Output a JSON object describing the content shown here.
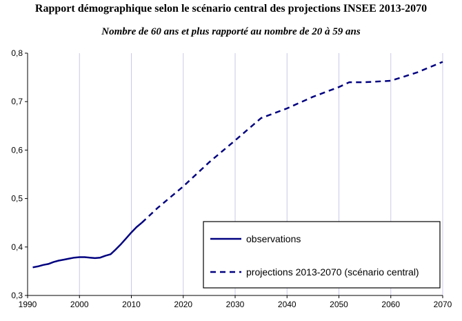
{
  "chart_data": {
    "type": "line",
    "title": "Rapport démographique selon le scénario central des projections INSEE 2013-2070",
    "subtitle": "Nombre de 60 ans et plus rapporté au nombre de 20 à 59 ans",
    "xlabel": "",
    "ylabel": "",
    "xlim": [
      1990,
      2070
    ],
    "ylim": [
      0.3,
      0.8
    ],
    "x_ticks": [
      1990,
      2000,
      2010,
      2020,
      2030,
      2040,
      2050,
      2060,
      2070
    ],
    "y_ticks": [
      0.3,
      0.4,
      0.5,
      0.6,
      0.7,
      0.8
    ],
    "y_tick_labels": [
      "0,3",
      "0,4",
      "0,5",
      "0,6",
      "0,7",
      "0,8"
    ],
    "grid": "vertical",
    "legend_position": "bottom-right",
    "colors": {
      "line": "#000080",
      "grid": "#c8c8e6",
      "axis": "#000000"
    },
    "series": [
      {
        "name": "observations",
        "style": "solid",
        "x": [
          1991,
          1992,
          1993,
          1994,
          1995,
          1996,
          1997,
          1998,
          1999,
          2000,
          2001,
          2002,
          2003,
          2004,
          2005,
          2006,
          2007,
          2008,
          2009,
          2010,
          2011,
          2012
        ],
        "y": [
          0.358,
          0.36,
          0.363,
          0.365,
          0.369,
          0.372,
          0.374,
          0.376,
          0.378,
          0.379,
          0.379,
          0.378,
          0.377,
          0.378,
          0.382,
          0.385,
          0.395,
          0.406,
          0.418,
          0.43,
          0.441,
          0.45
        ]
      },
      {
        "name": "projections 2013-2070 (scénario central)",
        "style": "dashed",
        "x": [
          2012,
          2015,
          2020,
          2025,
          2030,
          2035,
          2040,
          2045,
          2050,
          2052,
          2055,
          2060,
          2065,
          2070
        ],
        "y": [
          0.45,
          0.48,
          0.525,
          0.575,
          0.62,
          0.666,
          0.686,
          0.71,
          0.73,
          0.74,
          0.74,
          0.743,
          0.76,
          0.782
        ]
      }
    ]
  }
}
